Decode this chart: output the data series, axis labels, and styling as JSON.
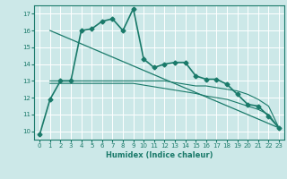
{
  "xlabel": "Humidex (Indice chaleur)",
  "bg_color": "#cce8e8",
  "grid_color": "#ffffff",
  "line_color": "#1a7a6a",
  "xlim": [
    -0.5,
    23.5
  ],
  "ylim": [
    9.5,
    17.5
  ],
  "xticks": [
    0,
    1,
    2,
    3,
    4,
    5,
    6,
    7,
    8,
    9,
    10,
    11,
    12,
    13,
    14,
    15,
    16,
    17,
    18,
    19,
    20,
    21,
    22,
    23
  ],
  "yticks": [
    10,
    11,
    12,
    13,
    14,
    15,
    16,
    17
  ],
  "series": [
    {
      "x": [
        0,
        1,
        2,
        3,
        4,
        5,
        6,
        7,
        8,
        9,
        10,
        11,
        12,
        13,
        14,
        15,
        16,
        17,
        18,
        19,
        20,
        21,
        22,
        23
      ],
      "y": [
        9.8,
        11.9,
        13.0,
        13.0,
        16.0,
        16.1,
        16.55,
        16.7,
        16.0,
        17.3,
        14.3,
        13.8,
        14.0,
        14.1,
        14.1,
        13.3,
        13.1,
        13.1,
        12.8,
        12.2,
        11.6,
        11.5,
        10.9,
        10.2
      ],
      "marker": "D",
      "markersize": 2.5,
      "linewidth": 1.2
    },
    {
      "x": [
        1,
        23
      ],
      "y": [
        16.0,
        10.2
      ],
      "marker": null,
      "markersize": 0,
      "linewidth": 0.9
    },
    {
      "x": [
        1,
        2,
        3,
        4,
        5,
        6,
        7,
        8,
        9,
        10,
        11,
        12,
        13,
        14,
        15,
        16,
        17,
        18,
        19,
        20,
        21,
        22,
        23
      ],
      "y": [
        13.0,
        13.0,
        13.0,
        13.0,
        13.0,
        13.0,
        13.0,
        13.0,
        13.0,
        13.0,
        13.0,
        13.0,
        12.9,
        12.8,
        12.7,
        12.7,
        12.6,
        12.5,
        12.4,
        12.2,
        11.9,
        11.5,
        10.2
      ],
      "marker": null,
      "markersize": 0,
      "linewidth": 0.8
    },
    {
      "x": [
        1,
        2,
        3,
        4,
        5,
        6,
        7,
        8,
        9,
        10,
        11,
        12,
        13,
        14,
        15,
        16,
        17,
        18,
        19,
        20,
        21,
        22,
        23
      ],
      "y": [
        12.85,
        12.85,
        12.85,
        12.85,
        12.85,
        12.85,
        12.85,
        12.85,
        12.85,
        12.75,
        12.65,
        12.55,
        12.45,
        12.35,
        12.25,
        12.1,
        12.0,
        11.9,
        11.7,
        11.5,
        11.3,
        11.0,
        10.2
      ],
      "marker": null,
      "markersize": 0,
      "linewidth": 0.8
    }
  ]
}
